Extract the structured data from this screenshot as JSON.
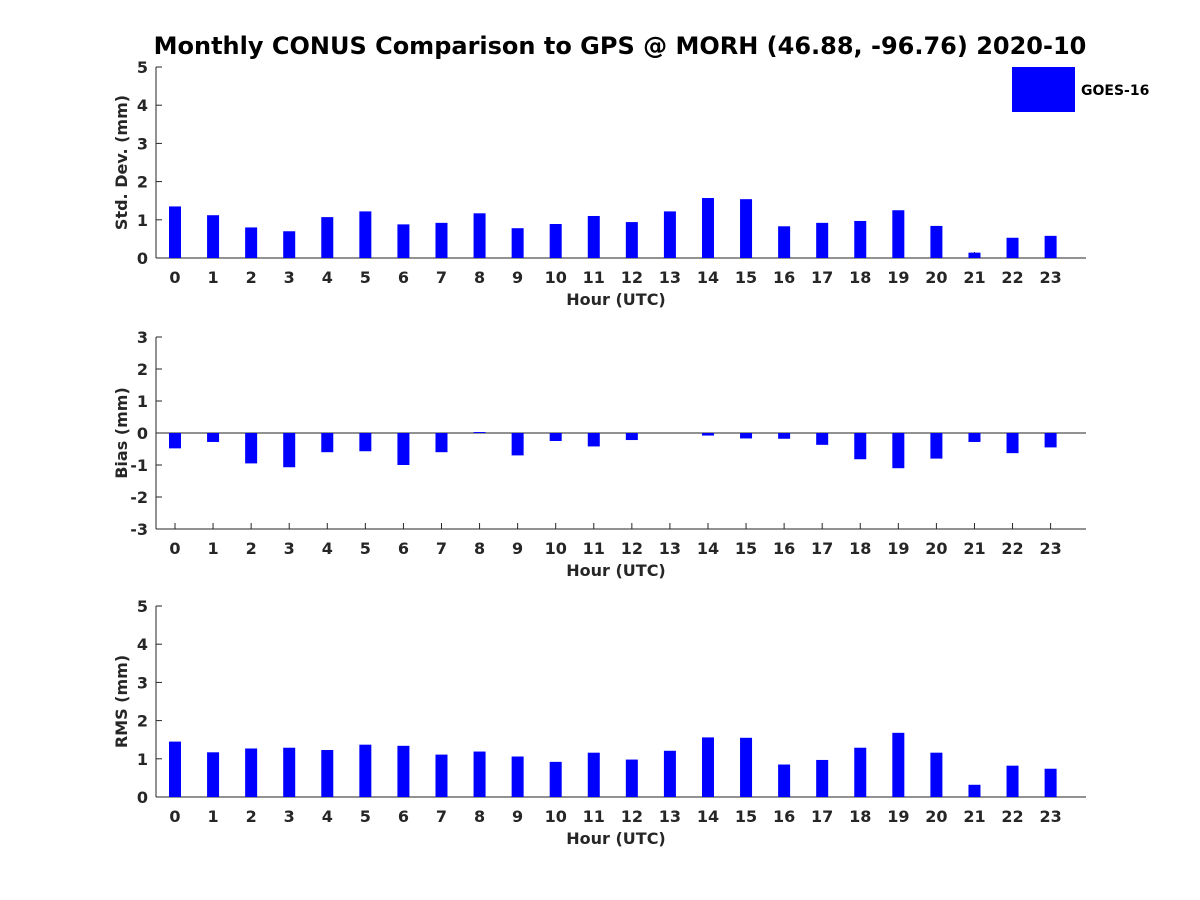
{
  "figure": {
    "title": "Monthly CONUS Comparison to GPS @ MORH (46.88, -96.76) 2020-10"
  },
  "legend": {
    "label": "GOES-16",
    "color": "#0000ff",
    "placement": "top-right"
  },
  "chart_data": [
    {
      "type": "bar",
      "xlabel": "Hour (UTC)",
      "ylabel": "Std. Dev. (mm)",
      "ylim": [
        0,
        5
      ],
      "yticks": [
        0,
        1,
        2,
        3,
        4,
        5
      ],
      "categories": [
        "0",
        "1",
        "2",
        "3",
        "4",
        "5",
        "6",
        "7",
        "8",
        "9",
        "10",
        "11",
        "12",
        "13",
        "14",
        "15",
        "16",
        "17",
        "18",
        "19",
        "20",
        "21",
        "22",
        "23"
      ],
      "series": [
        {
          "name": "GOES-16",
          "color": "#0000ff",
          "values": [
            1.35,
            1.12,
            0.8,
            0.7,
            1.07,
            1.22,
            0.88,
            0.92,
            1.17,
            0.78,
            0.89,
            1.1,
            0.94,
            1.22,
            1.57,
            1.54,
            0.83,
            0.92,
            0.97,
            1.25,
            0.84,
            0.14,
            0.53,
            0.58
          ]
        }
      ],
      "legend": true
    },
    {
      "type": "bar",
      "xlabel": "Hour (UTC)",
      "ylabel": "Bias (mm)",
      "ylim": [
        -3,
        3
      ],
      "yticks": [
        -3,
        -2,
        -1,
        0,
        1,
        2,
        3
      ],
      "categories": [
        "0",
        "1",
        "2",
        "3",
        "4",
        "5",
        "6",
        "7",
        "8",
        "9",
        "10",
        "11",
        "12",
        "13",
        "14",
        "15",
        "16",
        "17",
        "18",
        "19",
        "20",
        "21",
        "22",
        "23"
      ],
      "series": [
        {
          "name": "GOES-16",
          "color": "#0000ff",
          "values": [
            -0.48,
            -0.28,
            -0.95,
            -1.07,
            -0.6,
            -0.57,
            -1.0,
            -0.6,
            0.03,
            -0.7,
            -0.25,
            -0.42,
            -0.22,
            0.0,
            -0.08,
            -0.17,
            -0.18,
            -0.37,
            -0.82,
            -1.1,
            -0.8,
            -0.28,
            -0.63,
            -0.45
          ]
        }
      ],
      "legend": false
    },
    {
      "type": "bar",
      "xlabel": "Hour (UTC)",
      "ylabel": "RMS (mm)",
      "ylim": [
        0,
        5
      ],
      "yticks": [
        0,
        1,
        2,
        3,
        4,
        5
      ],
      "categories": [
        "0",
        "1",
        "2",
        "3",
        "4",
        "5",
        "6",
        "7",
        "8",
        "9",
        "10",
        "11",
        "12",
        "13",
        "14",
        "15",
        "16",
        "17",
        "18",
        "19",
        "20",
        "21",
        "22",
        "23"
      ],
      "series": [
        {
          "name": "GOES-16",
          "color": "#0000ff",
          "values": [
            1.45,
            1.17,
            1.27,
            1.29,
            1.23,
            1.37,
            1.34,
            1.11,
            1.19,
            1.06,
            0.92,
            1.16,
            0.98,
            1.21,
            1.56,
            1.55,
            0.85,
            0.97,
            1.29,
            1.68,
            1.16,
            0.32,
            0.82,
            0.74
          ]
        }
      ],
      "legend": false
    }
  ]
}
